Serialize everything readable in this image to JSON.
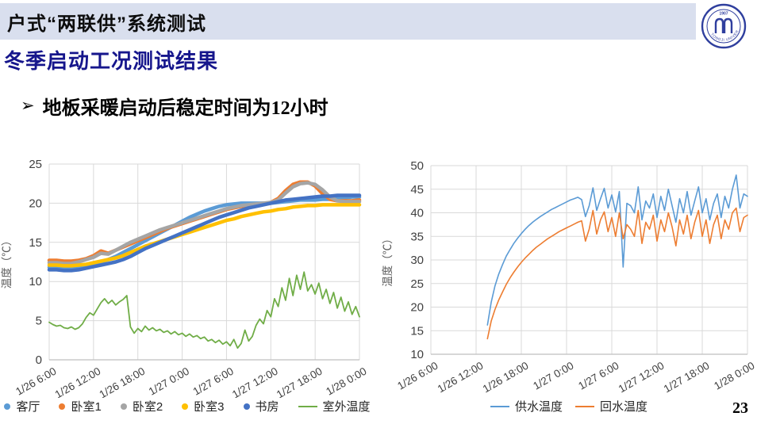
{
  "slide": {
    "title": "户式“两联供”系统测试",
    "subtitle": "冬季启动工况测试结果",
    "bullet_marker": "➢",
    "bullet": "地板采暖启动后稳定时间为12小时",
    "page_number": "23",
    "logo": {
      "year": "1907",
      "ring_text": "TONGJI UNIVERSITY"
    }
  },
  "colors": {
    "title_bar_bg": "#d9dfee",
    "subtitle_text": "#16168c",
    "grid": "#d9d9d9",
    "axis_line": "#bfbfbf",
    "tick_text": "#404040",
    "axis_title_text": "#595959",
    "logo_blue": "#2f3f9e"
  },
  "chart_data": [
    {
      "type": "line",
      "title": "",
      "xlabel": "",
      "ylabel": "温度（℃）",
      "ylim": [
        0,
        25
      ],
      "yticks": [
        0,
        5,
        10,
        15,
        20,
        25
      ],
      "xlim": [
        6,
        48
      ],
      "xticks": [
        6,
        12,
        18,
        24,
        30,
        36,
        42,
        48
      ],
      "xtick_labels": [
        "1/26 6:00",
        "1/26 12:00",
        "1/26 18:00",
        "1/27 0:00",
        "1/27 6:00",
        "1/27 12:00",
        "1/27 18:00",
        "1/28 0:00"
      ],
      "grid": true,
      "legend_position": "bottom",
      "series": [
        {
          "name": "客厅",
          "color": "#5b9bd5",
          "marker": "dot",
          "width": 4.5,
          "x0": 6,
          "dx": 1,
          "y": [
            11.8,
            11.8,
            11.7,
            11.7,
            11.8,
            12.0,
            12.2,
            12.5,
            12.8,
            13.2,
            13.7,
            14.2,
            14.7,
            15.2,
            15.7,
            16.2,
            16.7,
            17.2,
            17.7,
            18.2,
            18.6,
            19.0,
            19.3,
            19.6,
            19.8,
            19.9,
            20.0,
            20.0,
            20.0,
            20.0,
            20.0,
            20.1,
            20.2,
            20.3,
            20.4,
            20.4,
            20.4,
            20.5,
            20.5,
            20.6,
            20.7,
            20.8,
            20.8
          ]
        },
        {
          "name": "卧室1",
          "color": "#ed7d31",
          "marker": "dot",
          "width": 4.5,
          "x0": 6,
          "dx": 1,
          "y": [
            12.7,
            12.7,
            12.6,
            12.6,
            12.7,
            12.9,
            13.3,
            13.9,
            13.6,
            14.0,
            14.4,
            14.8,
            15.2,
            15.6,
            16.0,
            16.4,
            16.8,
            17.1,
            17.4,
            17.7,
            18.0,
            18.3,
            18.6,
            18.9,
            19.2,
            19.4,
            19.6,
            19.7,
            19.8,
            19.9,
            20.1,
            20.6,
            21.6,
            22.4,
            22.7,
            22.7,
            22.2,
            21.2,
            20.5,
            20.3,
            20.3,
            20.3,
            20.4
          ]
        },
        {
          "name": "卧室2",
          "color": "#a5a5a5",
          "marker": "dot",
          "width": 4.5,
          "x0": 6,
          "dx": 1,
          "y": [
            12.4,
            12.4,
            12.3,
            12.3,
            12.5,
            12.8,
            13.1,
            13.6,
            13.5,
            14.0,
            14.5,
            15.0,
            15.4,
            15.8,
            16.2,
            16.6,
            16.9,
            17.2,
            17.5,
            17.8,
            18.1,
            18.4,
            18.7,
            19.0,
            19.3,
            19.5,
            19.7,
            19.8,
            19.9,
            20.0,
            20.1,
            20.4,
            21.3,
            22.1,
            22.5,
            22.6,
            22.4,
            21.7,
            20.8,
            20.3,
            20.2,
            20.2,
            20.2
          ]
        },
        {
          "name": "卧室3",
          "color": "#ffc000",
          "marker": "dot",
          "width": 4.5,
          "x0": 6,
          "dx": 1,
          "y": [
            12.1,
            12.1,
            12.0,
            12.0,
            12.1,
            12.2,
            12.4,
            12.6,
            12.8,
            13.0,
            13.3,
            13.7,
            14.1,
            14.5,
            14.8,
            15.1,
            15.4,
            15.7,
            16.0,
            16.3,
            16.6,
            16.9,
            17.2,
            17.5,
            17.8,
            18.0,
            18.3,
            18.5,
            18.7,
            18.9,
            19.0,
            19.2,
            19.3,
            19.5,
            19.6,
            19.7,
            19.7,
            19.8,
            19.8,
            19.8,
            19.8,
            19.8,
            19.8
          ]
        },
        {
          "name": "书房",
          "color": "#4472c4",
          "marker": "dot",
          "width": 4.5,
          "x0": 6,
          "dx": 1,
          "y": [
            11.5,
            11.5,
            11.4,
            11.4,
            11.5,
            11.7,
            11.9,
            12.1,
            12.3,
            12.5,
            12.8,
            13.2,
            13.7,
            14.2,
            14.6,
            15.0,
            15.4,
            15.8,
            16.2,
            16.6,
            17.0,
            17.4,
            17.8,
            18.2,
            18.5,
            18.8,
            19.1,
            19.4,
            19.6,
            19.8,
            20.0,
            20.2,
            20.4,
            20.5,
            20.6,
            20.7,
            20.8,
            20.9,
            20.9,
            21.0,
            21.0,
            21.0,
            21.0
          ]
        },
        {
          "name": "室外温度",
          "color": "#70ad47",
          "marker": "line",
          "width": 1.8,
          "x0": 6,
          "dx": 0.5,
          "y": [
            4.8,
            4.5,
            4.3,
            4.4,
            4.1,
            4.0,
            4.2,
            3.9,
            4.1,
            4.6,
            5.4,
            6.0,
            5.7,
            6.5,
            7.3,
            7.8,
            7.2,
            7.6,
            7.0,
            7.4,
            7.7,
            8.2,
            4.2,
            3.4,
            4.0,
            3.6,
            4.3,
            3.8,
            4.1,
            3.7,
            3.9,
            3.5,
            3.7,
            3.3,
            3.6,
            3.2,
            3.4,
            3.0,
            3.3,
            2.9,
            3.1,
            2.7,
            2.9,
            2.4,
            2.6,
            2.2,
            2.5,
            2.0,
            2.3,
            1.8,
            2.6,
            1.5,
            2.1,
            3.8,
            2.4,
            3.0,
            4.4,
            5.2,
            4.6,
            6.3,
            5.5,
            7.8,
            6.8,
            9.2,
            7.6,
            10.4,
            8.2,
            10.8,
            9.0,
            11.2,
            8.8,
            9.6,
            8.4,
            9.8,
            7.8,
            9.0,
            7.2,
            8.6,
            6.6,
            8.0,
            6.2,
            7.4,
            5.8,
            6.8,
            5.5
          ]
        }
      ]
    },
    {
      "type": "line",
      "title": "",
      "xlabel": "",
      "ylabel": "温度（℃）",
      "ylim": [
        10,
        50
      ],
      "yticks": [
        10,
        15,
        20,
        25,
        30,
        35,
        40,
        45,
        50
      ],
      "xlim": [
        6,
        48
      ],
      "xticks": [
        6,
        12,
        18,
        24,
        30,
        36,
        42,
        48
      ],
      "xtick_labels": [
        "1/26 6:00",
        "1/26 12:00",
        "1/26 18:00",
        "1/27 0:00",
        "1/27 6:00",
        "1/27 12:00",
        "1/27 18:00",
        "1/28 0:00"
      ],
      "grid": true,
      "legend_position": "bottom",
      "series": [
        {
          "name": "供水温度",
          "color": "#5b9bd5",
          "marker": "line",
          "width": 1.6,
          "x0": 13.5,
          "dx": 0.5,
          "y": [
            16.2,
            21.0,
            24.5,
            27.0,
            29.0,
            30.8,
            32.2,
            33.5,
            34.6,
            35.6,
            36.5,
            37.3,
            38.0,
            38.6,
            39.2,
            39.7,
            40.2,
            40.7,
            41.1,
            41.5,
            41.9,
            42.3,
            42.7,
            43.0,
            43.3,
            42.8,
            39.2,
            41.5,
            45.3,
            40.5,
            43.0,
            45.2,
            41.0,
            43.8,
            40.2,
            44.5,
            28.5,
            42.0,
            41.5,
            40.0,
            45.5,
            38.5,
            42.5,
            41.0,
            44.0,
            39.0,
            43.5,
            40.5,
            45.0,
            41.5,
            38.0,
            43.0,
            40.0,
            44.5,
            39.5,
            42.5,
            45.5,
            40.0,
            43.0,
            38.5,
            42.0,
            44.0,
            39.0,
            43.5,
            41.0,
            45.0,
            48.0,
            41.0,
            44.0,
            43.5
          ]
        },
        {
          "name": "回水温度",
          "color": "#ed7d31",
          "marker": "line",
          "width": 1.6,
          "x0": 13.5,
          "dx": 0.5,
          "y": [
            13.3,
            17.0,
            19.5,
            21.5,
            23.2,
            24.8,
            26.2,
            27.4,
            28.5,
            29.5,
            30.4,
            31.2,
            32.0,
            32.7,
            33.3,
            33.9,
            34.5,
            35.0,
            35.5,
            36.0,
            36.4,
            36.8,
            37.2,
            37.6,
            38.0,
            38.3,
            34.0,
            36.5,
            40.5,
            35.5,
            38.5,
            40.2,
            36.0,
            39.0,
            35.0,
            40.0,
            34.5,
            37.5,
            36.5,
            35.0,
            40.5,
            33.5,
            38.0,
            36.5,
            39.5,
            34.0,
            38.5,
            36.0,
            40.0,
            37.0,
            33.0,
            38.5,
            35.5,
            39.5,
            34.5,
            38.0,
            40.5,
            35.0,
            38.5,
            33.5,
            37.5,
            39.5,
            34.5,
            38.5,
            36.5,
            40.0,
            41.0,
            36.0,
            39.0,
            39.5
          ]
        }
      ]
    }
  ]
}
